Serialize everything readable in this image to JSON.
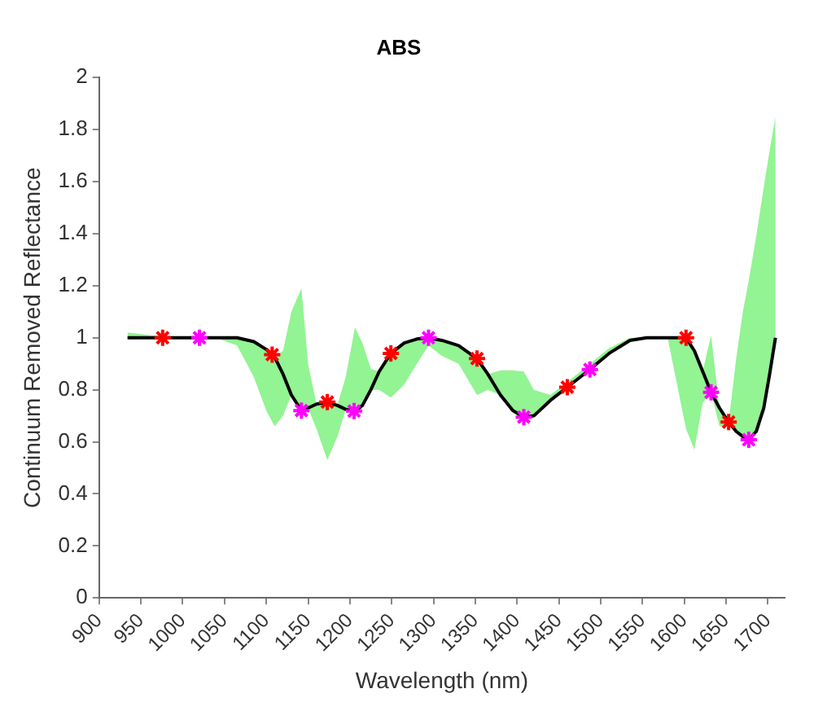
{
  "chart_data": {
    "type": "line",
    "title": "ABS",
    "xlabel": "Wavelength (nm)",
    "ylabel": "Continuum Removed Reflectance",
    "xlim": [
      900,
      1720
    ],
    "xticks": [
      900,
      950,
      1000,
      1050,
      1100,
      1150,
      1200,
      1250,
      1300,
      1350,
      1400,
      1450,
      1500,
      1550,
      1600,
      1650,
      1700
    ],
    "ylim": [
      0,
      2
    ],
    "yticks": [
      0,
      0.2,
      0.4,
      0.6,
      0.8,
      1,
      1.2,
      1.4,
      1.6,
      1.8,
      2
    ],
    "grid": false,
    "legend": false,
    "series": [
      {
        "color": "#000000",
        "marker": "none",
        "line_style": "solid",
        "x": [
          934,
          960,
          1000,
          1040,
          1065,
          1085,
          1100,
          1110,
          1120,
          1130,
          1142,
          1150,
          1160,
          1173,
          1185,
          1195,
          1206,
          1215,
          1225,
          1235,
          1249,
          1265,
          1280,
          1294,
          1310,
          1330,
          1352,
          1365,
          1380,
          1395,
          1408,
          1420,
          1440,
          1460,
          1487,
          1510,
          1535,
          1555,
          1580,
          1602,
          1612,
          1622,
          1632,
          1642,
          1653,
          1662,
          1670,
          1677,
          1686,
          1695,
          1702,
          1709
        ],
        "values": [
          1.0,
          1.0,
          1.0,
          1.0,
          1.0,
          0.985,
          0.955,
          0.925,
          0.86,
          0.78,
          0.72,
          0.73,
          0.745,
          0.753,
          0.74,
          0.725,
          0.718,
          0.74,
          0.8,
          0.87,
          0.94,
          0.98,
          0.995,
          1.0,
          0.99,
          0.97,
          0.92,
          0.86,
          0.78,
          0.72,
          0.695,
          0.7,
          0.76,
          0.81,
          0.878,
          0.94,
          0.99,
          1.0,
          1.0,
          1.0,
          0.95,
          0.87,
          0.79,
          0.73,
          0.676,
          0.64,
          0.62,
          0.608,
          0.64,
          0.73,
          0.86,
          1.0
        ],
        "lower": [
          1.0,
          1.0,
          1.0,
          1.0,
          0.97,
          0.85,
          0.72,
          0.66,
          0.7,
          0.78,
          0.72,
          0.73,
          0.65,
          0.53,
          0.62,
          0.725,
          0.718,
          0.74,
          0.8,
          0.8,
          0.77,
          0.82,
          0.9,
          0.97,
          0.93,
          0.9,
          0.78,
          0.8,
          0.78,
          0.72,
          0.695,
          0.7,
          0.76,
          0.81,
          0.878,
          0.94,
          0.99,
          1.0,
          1.0,
          0.65,
          0.57,
          0.75,
          0.79,
          0.66,
          0.66,
          0.64,
          0.62,
          0.608,
          0.64,
          0.73,
          0.86,
          1.0
        ],
        "upper": [
          1.02,
          1.01,
          1.0,
          1.0,
          1.0,
          0.985,
          0.955,
          0.925,
          0.95,
          1.1,
          1.19,
          0.9,
          0.745,
          0.753,
          0.74,
          0.85,
          1.04,
          0.98,
          0.88,
          0.87,
          0.94,
          0.98,
          0.995,
          1.0,
          0.99,
          0.97,
          0.92,
          0.86,
          0.875,
          0.875,
          0.87,
          0.8,
          0.78,
          0.83,
          0.9,
          0.96,
          1.0,
          1.0,
          1.0,
          1.0,
          0.95,
          0.87,
          1.01,
          0.73,
          0.676,
          0.92,
          1.1,
          1.22,
          1.39,
          1.58,
          1.72,
          1.85
        ]
      },
      {
        "type": "scatter",
        "color": "#ff0000",
        "marker": "cross",
        "x": [
          976,
          1107,
          1173,
          1249,
          1352,
          1460,
          1602,
          1653
        ],
        "values": [
          1.0,
          0.935,
          0.753,
          0.94,
          0.92,
          0.81,
          1.0,
          0.676
        ]
      },
      {
        "type": "scatter",
        "color": "#ff00ff",
        "marker": "cross",
        "x": [
          1020,
          1142,
          1205,
          1294,
          1408,
          1487,
          1632,
          1677
        ],
        "values": [
          1.0,
          0.72,
          0.718,
          1.0,
          0.695,
          0.878,
          0.79,
          0.608
        ]
      }
    ]
  }
}
